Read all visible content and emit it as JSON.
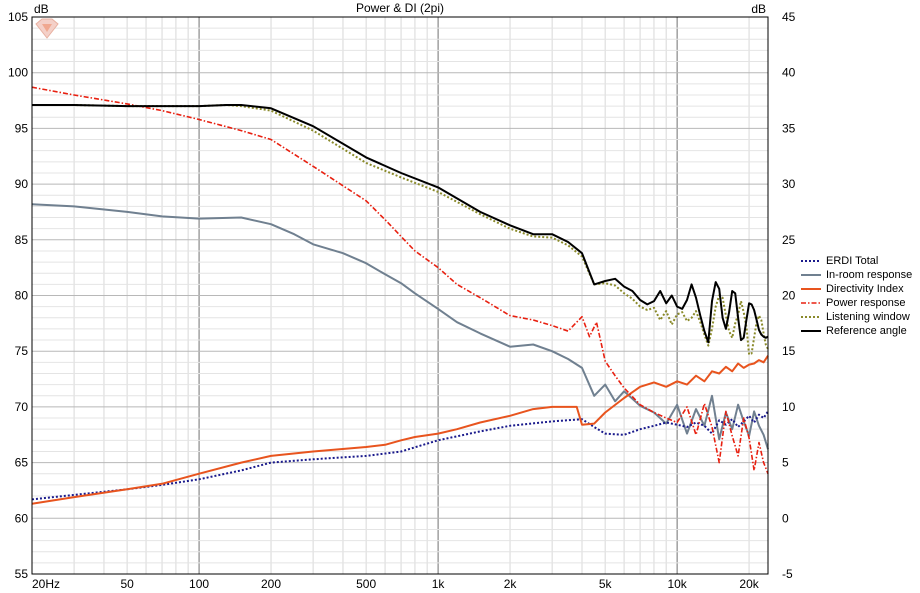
{
  "chart_data": {
    "type": "line",
    "title": "Power & DI (2pi)",
    "ylabel_left": "dB",
    "ylabel_right": "dB",
    "x_scale": "log",
    "xlim": [
      20,
      24000
    ],
    "ylim_left": [
      55,
      105
    ],
    "ylim_right": [
      -5,
      45
    ],
    "x_tick_labels": [
      {
        "value": 20,
        "label": "20Hz"
      },
      {
        "value": 50,
        "label": "50"
      },
      {
        "value": 100,
        "label": "100"
      },
      {
        "value": 200,
        "label": "200"
      },
      {
        "value": 500,
        "label": "500"
      },
      {
        "value": 1000,
        "label": "1k"
      },
      {
        "value": 2000,
        "label": "2k"
      },
      {
        "value": 5000,
        "label": "5k"
      },
      {
        "value": 10000,
        "label": "10k"
      },
      {
        "value": 20000,
        "label": "20k"
      }
    ],
    "y_ticks_left": [
      55,
      60,
      65,
      70,
      75,
      80,
      85,
      90,
      95,
      100,
      105
    ],
    "y_ticks_right": [
      -5,
      0,
      5,
      10,
      15,
      20,
      25,
      30,
      35,
      40,
      45
    ],
    "grid": true,
    "legend_position": "right",
    "series": [
      {
        "name": "ERDI Total",
        "color": "#1a1a8c",
        "style": "dotted",
        "axis": "right",
        "x": [
          20,
          30,
          50,
          70,
          100,
          150,
          200,
          300,
          500,
          700,
          1000,
          1500,
          2000,
          3000,
          4000,
          4500,
          5000,
          6000,
          7000,
          8000,
          9000,
          10000,
          11000,
          12000,
          13000,
          14000,
          15000,
          16000,
          17000,
          18000,
          19000,
          20000,
          21000,
          22000,
          23000,
          24000
        ],
        "y": [
          1.7,
          2.1,
          2.6,
          3.0,
          3.5,
          4.3,
          5.0,
          5.3,
          5.6,
          6.0,
          7.0,
          7.8,
          8.3,
          8.7,
          8.9,
          8.2,
          7.6,
          7.5,
          8.0,
          8.3,
          8.6,
          8.4,
          8.2,
          8.6,
          8.3,
          7.6,
          8.8,
          8.4,
          8.9,
          8.2,
          8.7,
          9.2,
          8.6,
          9.3,
          9.0,
          9.6
        ]
      },
      {
        "name": "In-room response",
        "color": "#708090",
        "style": "solid",
        "axis": "left",
        "x": [
          20,
          30,
          50,
          70,
          100,
          150,
          200,
          250,
          300,
          400,
          500,
          600,
          700,
          800,
          1000,
          1200,
          1500,
          2000,
          2500,
          3000,
          3500,
          4000,
          4500,
          5000,
          5500,
          6000,
          7000,
          8000,
          9000,
          10000,
          11000,
          12000,
          13000,
          14000,
          15000,
          16000,
          17000,
          18000,
          19000,
          20000,
          21000,
          22000,
          23000,
          24000
        ],
        "y": [
          88.2,
          88.0,
          87.5,
          87.1,
          86.9,
          87.0,
          86.4,
          85.5,
          84.6,
          83.8,
          82.9,
          81.9,
          81.1,
          80.2,
          78.8,
          77.6,
          76.6,
          75.4,
          75.6,
          75.0,
          74.3,
          73.5,
          71.0,
          72.0,
          70.5,
          71.4,
          70.1,
          69.5,
          68.5,
          70.2,
          67.6,
          69.8,
          68.3,
          71.0,
          67.1,
          69.5,
          68.0,
          70.2,
          68.7,
          67.4,
          69.6,
          68.3,
          67.5,
          66.2
        ]
      },
      {
        "name": "Directivity Index",
        "color": "#e8541e",
        "style": "solid",
        "axis": "right",
        "x": [
          20,
          30,
          50,
          70,
          100,
          150,
          200,
          300,
          500,
          600,
          700,
          800,
          1000,
          1200,
          1500,
          2000,
          2500,
          3000,
          3800,
          4000,
          4500,
          5000,
          6000,
          7000,
          8000,
          9000,
          10000,
          11000,
          12000,
          13000,
          14000,
          15000,
          16000,
          17000,
          18000,
          19000,
          20000,
          21000,
          22000,
          23000,
          24000
        ],
        "y": [
          1.3,
          1.9,
          2.6,
          3.1,
          4.0,
          5.0,
          5.6,
          6.0,
          6.4,
          6.6,
          7.0,
          7.3,
          7.6,
          8.0,
          8.6,
          9.2,
          9.8,
          10.0,
          10.0,
          8.4,
          8.5,
          9.5,
          10.8,
          11.8,
          12.2,
          11.8,
          12.3,
          12.0,
          12.8,
          12.3,
          13.2,
          13.0,
          13.6,
          13.2,
          13.9,
          13.5,
          13.8,
          13.9,
          14.2,
          14.0,
          14.6
        ]
      },
      {
        "name": "Power response",
        "color": "#e82010",
        "style": "dashdot",
        "axis": "left",
        "x": [
          20,
          30,
          50,
          70,
          100,
          150,
          200,
          300,
          500,
          600,
          700,
          800,
          1000,
          1200,
          1500,
          2000,
          2500,
          3000,
          3500,
          4000,
          4300,
          4600,
          5000,
          5500,
          6000,
          7000,
          8000,
          9000,
          10000,
          11000,
          12000,
          13000,
          14000,
          15000,
          16000,
          17000,
          18000,
          19000,
          20000,
          21000,
          22000,
          23000,
          24000
        ],
        "y": [
          98.7,
          98.0,
          97.2,
          96.6,
          95.8,
          94.8,
          94.0,
          91.6,
          88.5,
          86.8,
          85.3,
          84.0,
          82.5,
          81.0,
          79.8,
          78.2,
          77.8,
          77.3,
          76.8,
          78.1,
          76.3,
          77.6,
          74.1,
          72.8,
          71.7,
          70.2,
          69.5,
          69.0,
          68.6,
          70.0,
          67.5,
          70.3,
          68.2,
          65.0,
          69.6,
          67.4,
          65.6,
          69.0,
          67.2,
          64.3,
          66.8,
          65.0,
          64.0
        ]
      },
      {
        "name": "Listening window",
        "color": "#8a8a2a",
        "style": "dotted",
        "axis": "left",
        "x": [
          20,
          30,
          50,
          70,
          100,
          130,
          150,
          200,
          300,
          500,
          700,
          1000,
          1500,
          2000,
          2500,
          3000,
          3500,
          4000,
          4500,
          5000,
          5500,
          6000,
          6500,
          7000,
          7500,
          8000,
          8500,
          9000,
          9500,
          10000,
          10500,
          11000,
          11500,
          12000,
          12500,
          13000,
          13500,
          14000,
          14500,
          15000,
          15500,
          16000,
          16500,
          17000,
          17500,
          18000,
          18500,
          19000,
          19500,
          20000,
          20500,
          21000,
          21500,
          22000,
          22500,
          23000,
          23500,
          24000
        ],
        "y": [
          97.1,
          97.1,
          97.0,
          97.0,
          97.0,
          97.1,
          97.0,
          96.6,
          94.8,
          91.9,
          90.6,
          89.3,
          87.3,
          86.0,
          85.3,
          85.2,
          84.5,
          83.5,
          81.0,
          81.1,
          80.9,
          80.2,
          79.7,
          79.0,
          78.7,
          78.9,
          77.8,
          78.6,
          77.4,
          78.3,
          78.5,
          77.7,
          78.0,
          78.6,
          77.6,
          76.5,
          75.5,
          77.0,
          79.0,
          80.0,
          79.8,
          78.2,
          76.8,
          76.2,
          77.5,
          78.3,
          79.5,
          78.5,
          77.2,
          74.7,
          74.8,
          76.2,
          77.6,
          78.2,
          77.8,
          76.6,
          75.6,
          75.2
        ]
      },
      {
        "name": "Reference angle",
        "color": "#000000",
        "style": "solid",
        "axis": "left",
        "x": [
          20,
          30,
          50,
          70,
          100,
          130,
          150,
          200,
          300,
          500,
          700,
          1000,
          1500,
          2000,
          2500,
          3000,
          3500,
          4000,
          4500,
          5000,
          5500,
          6000,
          6500,
          7000,
          7500,
          8000,
          8500,
          9000,
          9500,
          10000,
          10500,
          11000,
          11500,
          12000,
          12500,
          13000,
          13500,
          14000,
          14500,
          15000,
          15500,
          16000,
          16500,
          17000,
          17500,
          18000,
          18500,
          19000,
          19500,
          20000,
          20500,
          21000,
          21500,
          22000,
          22500,
          23000,
          23500,
          24000
        ],
        "y": [
          97.1,
          97.1,
          97.0,
          97.0,
          97.0,
          97.1,
          97.1,
          96.8,
          95.2,
          92.4,
          91.0,
          89.7,
          87.5,
          86.3,
          85.5,
          85.5,
          84.8,
          83.8,
          81.0,
          81.3,
          81.5,
          80.8,
          80.4,
          79.6,
          79.2,
          79.5,
          80.4,
          79.3,
          80.0,
          79.0,
          78.8,
          79.6,
          81.0,
          79.8,
          78.2,
          76.8,
          75.8,
          79.5,
          81.2,
          80.6,
          78.0,
          77.0,
          78.5,
          80.4,
          80.2,
          78.0,
          76.0,
          76.2,
          77.8,
          79.3,
          79.2,
          78.7,
          77.8,
          76.9,
          76.5,
          76.3,
          76.2,
          76.3
        ]
      }
    ]
  }
}
